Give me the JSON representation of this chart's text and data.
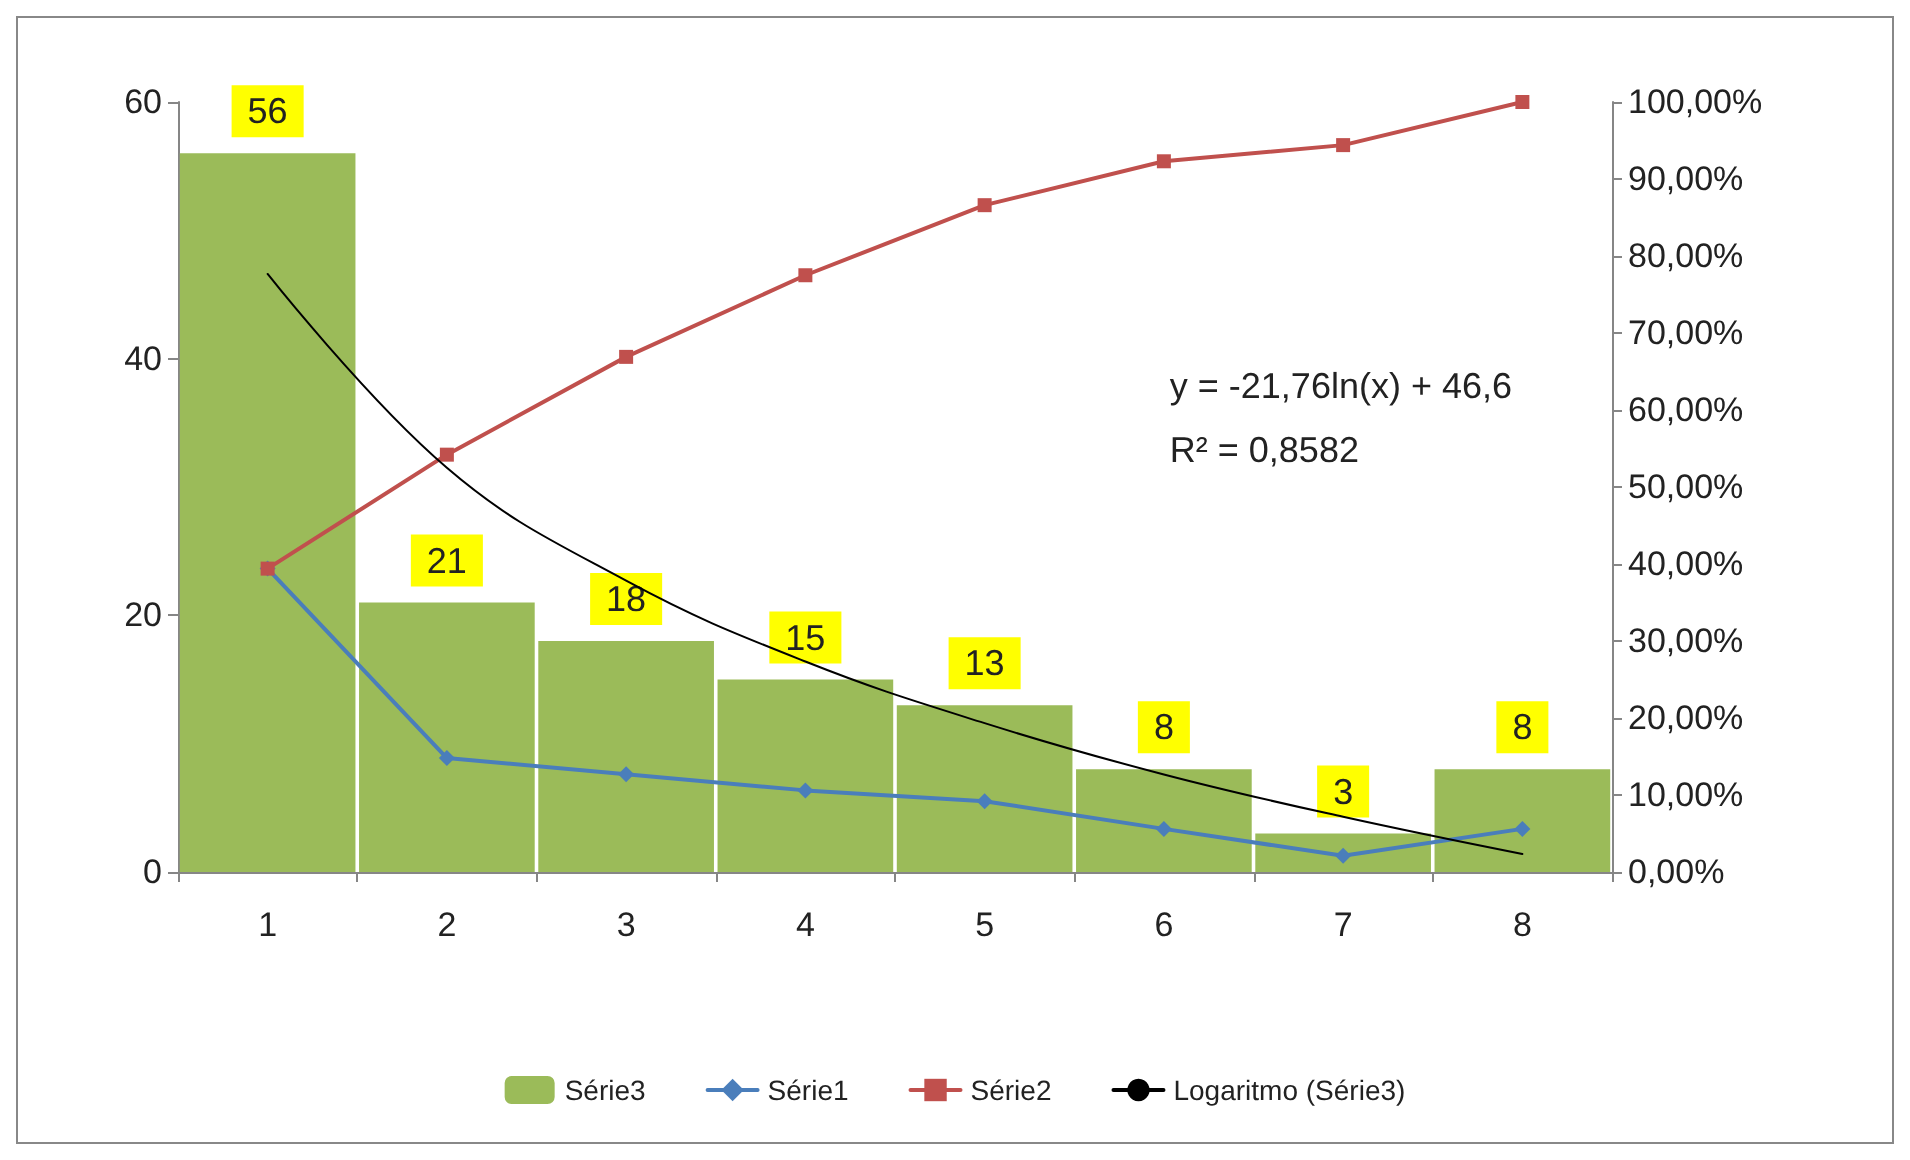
{
  "chart_data": {
    "type": "bar",
    "categories": [
      "1",
      "2",
      "3",
      "4",
      "5",
      "6",
      "7",
      "8"
    ],
    "series": [
      {
        "name": "Série3",
        "color": "#9bbb59",
        "values": [
          56,
          21,
          18,
          15,
          13,
          8,
          3,
          8
        ],
        "data_labels": true
      },
      {
        "name": "Série1",
        "type": "line",
        "axis": "y2",
        "color": "#4a7ebb",
        "marker": "diamond",
        "values": [
          39.4,
          14.8,
          12.7,
          10.6,
          9.2,
          5.6,
          2.1,
          5.6
        ]
      },
      {
        "name": "Série2",
        "type": "line",
        "axis": "y2",
        "color": "#c0504d",
        "marker": "square",
        "values": [
          39.4,
          54.2,
          66.9,
          77.5,
          86.6,
          92.3,
          94.4,
          100
        ]
      },
      {
        "name": "Logaritmo (Série3)",
        "type": "line",
        "color": "#000000",
        "marker": "none",
        "values": [
          46.6,
          31.5,
          22.7,
          16.4,
          11.6,
          7.6,
          4.3,
          1.4
        ]
      }
    ],
    "ylim": [
      0,
      60
    ],
    "yticks": [
      0,
      20,
      40,
      60
    ],
    "y2lim": [
      0,
      100
    ],
    "y2ticks": [
      {
        "value": 0,
        "label": "0,00%"
      },
      {
        "value": 10,
        "label": "10,00%"
      },
      {
        "value": 20,
        "label": "20,00%"
      },
      {
        "value": 30,
        "label": "30,00%"
      },
      {
        "value": 40,
        "label": "40,00%"
      },
      {
        "value": 50,
        "label": "50,00%"
      },
      {
        "value": 60,
        "label": "60,00%"
      },
      {
        "value": 70,
        "label": "70,00%"
      },
      {
        "value": 80,
        "label": "80,00%"
      },
      {
        "value": 90,
        "label": "90,00%"
      },
      {
        "value": 100,
        "label": "100,00%"
      }
    ],
    "annotations": [
      "y = -21,76ln(x) + 46,6",
      "R² = 0,8582"
    ],
    "grid": false,
    "legend": "bottom",
    "line_style": "solid"
  }
}
